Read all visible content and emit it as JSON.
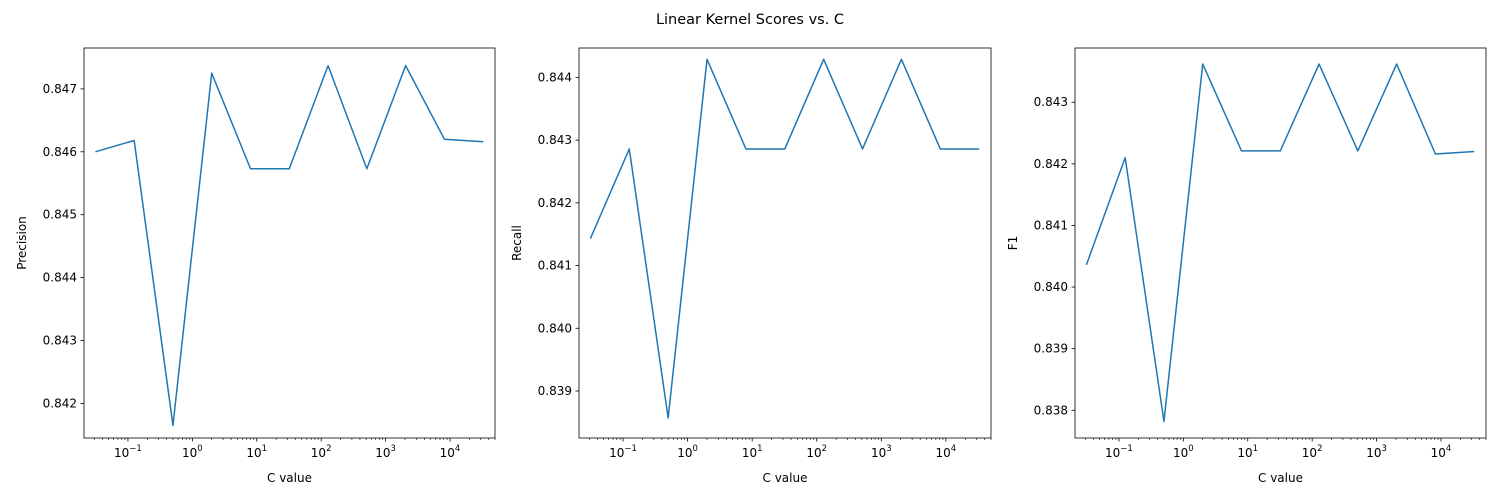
{
  "figure": {
    "suptitle": "Linear Kernel Scores vs. C"
  },
  "chart_data": [
    {
      "type": "line",
      "xscale": "log",
      "xlabel": "C value",
      "ylabel": "Precision",
      "xlim": [
        0.0208,
        50000
      ],
      "ylim": [
        0.84145,
        0.84765
      ],
      "x_ticks": [
        0.1,
        1,
        10,
        100,
        1000,
        10000
      ],
      "x_tick_labels": [
        [
          "10",
          "−1"
        ],
        [
          "10",
          "0"
        ],
        [
          "10",
          "1"
        ],
        [
          "10",
          "2"
        ],
        [
          "10",
          "3"
        ],
        [
          "10",
          "4"
        ]
      ],
      "y_ticks": [
        0.842,
        0.843,
        0.844,
        0.845,
        0.846,
        0.847
      ],
      "y_tick_labels": [
        "0.842",
        "0.843",
        "0.844",
        "0.845",
        "0.846",
        "0.847"
      ],
      "color": "#1f77b4",
      "x": [
        0.03125,
        0.125,
        0.5,
        2,
        8,
        32,
        128,
        512,
        2048,
        8192,
        32768
      ],
      "y": [
        0.846,
        0.84618,
        0.84165,
        0.84725,
        0.84573,
        0.84573,
        0.84737,
        0.84573,
        0.84737,
        0.8462,
        0.84616
      ]
    },
    {
      "type": "line",
      "xscale": "log",
      "xlabel": "C value",
      "ylabel": "Recall",
      "xlim": [
        0.0208,
        50000
      ],
      "ylim": [
        0.83825,
        0.84447
      ],
      "x_ticks": [
        0.1,
        1,
        10,
        100,
        1000,
        10000
      ],
      "x_tick_labels": [
        [
          "10",
          "−1"
        ],
        [
          "10",
          "0"
        ],
        [
          "10",
          "1"
        ],
        [
          "10",
          "2"
        ],
        [
          "10",
          "3"
        ],
        [
          "10",
          "4"
        ]
      ],
      "y_ticks": [
        0.839,
        0.84,
        0.841,
        0.842,
        0.843,
        0.844
      ],
      "y_tick_labels": [
        "0.839",
        "0.840",
        "0.841",
        "0.842",
        "0.843",
        "0.844"
      ],
      "color": "#1f77b4",
      "x": [
        0.03125,
        0.125,
        0.5,
        2,
        8,
        32,
        128,
        512,
        2048,
        8192,
        32768
      ],
      "y": [
        0.84143,
        0.84286,
        0.83857,
        0.84429,
        0.84286,
        0.84286,
        0.84429,
        0.84286,
        0.84429,
        0.84286,
        0.84286
      ]
    },
    {
      "type": "line",
      "xscale": "log",
      "xlabel": "C value",
      "ylabel": "F1",
      "xlim": [
        0.0208,
        50000
      ],
      "ylim": [
        0.83755,
        0.84388
      ],
      "x_ticks": [
        0.1,
        1,
        10,
        100,
        1000,
        10000
      ],
      "x_tick_labels": [
        [
          "10",
          "−1"
        ],
        [
          "10",
          "0"
        ],
        [
          "10",
          "1"
        ],
        [
          "10",
          "2"
        ],
        [
          "10",
          "3"
        ],
        [
          "10",
          "4"
        ]
      ],
      "y_ticks": [
        0.838,
        0.839,
        0.84,
        0.841,
        0.842,
        0.843
      ],
      "y_tick_labels": [
        "0.838",
        "0.839",
        "0.840",
        "0.841",
        "0.842",
        "0.843"
      ],
      "color": "#1f77b4",
      "x": [
        0.03125,
        0.125,
        0.5,
        2,
        8,
        32,
        128,
        512,
        2048,
        8192,
        32768
      ],
      "y": [
        0.84036,
        0.8421,
        0.83782,
        0.84362,
        0.84221,
        0.84221,
        0.84362,
        0.84221,
        0.84362,
        0.84216,
        0.8422
      ]
    }
  ]
}
